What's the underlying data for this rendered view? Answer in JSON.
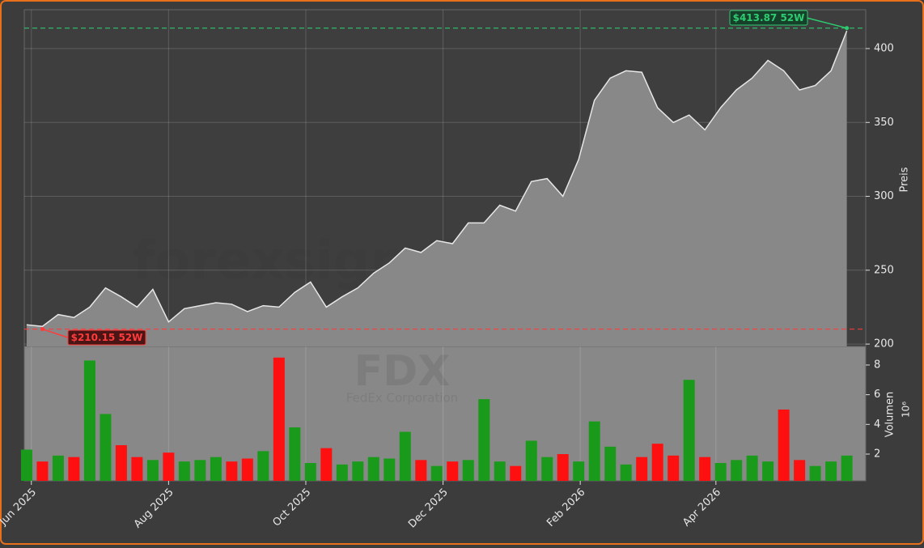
{
  "chart_data": {
    "type": "area",
    "watermark": "forexsignale.trade",
    "symbol": "FDX",
    "company": "FedEx Corporation",
    "ylabel": "Preis",
    "ylim": [
      198.4,
      426.3
    ],
    "yticks": [
      200,
      250,
      300,
      350,
      400
    ],
    "xlim": [
      -0.15,
      53.2
    ],
    "xticks": [
      {
        "value": 0.3,
        "label": "Jun 2025"
      },
      {
        "value": 9,
        "label": "Aug 2025"
      },
      {
        "value": 17.7,
        "label": "Oct 2025"
      },
      {
        "value": 26.4,
        "label": "Dec 2025"
      },
      {
        "value": 35.1,
        "label": "Feb 2026"
      },
      {
        "value": 43.7,
        "label": "Apr 2026"
      }
    ],
    "grid": true,
    "color": "#e6e6e6",
    "fill": "#888888",
    "values": [
      213,
      212,
      220,
      218,
      225,
      238,
      232,
      225,
      237,
      215,
      224,
      226,
      228,
      227,
      222,
      226,
      225,
      235,
      242,
      225,
      232,
      238,
      248,
      255,
      265,
      262,
      270,
      268,
      282,
      282,
      294,
      290,
      310,
      312,
      300,
      325,
      365,
      380,
      385,
      384,
      360,
      350,
      355,
      345,
      360,
      372,
      380,
      392,
      385,
      372,
      375,
      385,
      412
    ],
    "annotations": [
      {
        "label": "$413.87 52W",
        "value": 413.87,
        "color": "#2ecc71"
      },
      {
        "label": "$210.15 52W",
        "value": 210.15,
        "color": "#ff3b3b"
      }
    ],
    "volume": {
      "type": "bar",
      "ylabel": "Volumen",
      "unit_label": "10⁶",
      "ylim": [
        0.2,
        9.25
      ],
      "yticks": [
        2,
        4,
        6,
        8
      ],
      "up_color": "#1a9a1a",
      "down_color": "#ff1010",
      "values": [
        2.3,
        1.5,
        1.9,
        1.8,
        8.3,
        4.7,
        2.6,
        1.8,
        1.6,
        2.1,
        1.5,
        1.6,
        1.8,
        1.5,
        1.7,
        2.2,
        8.5,
        3.8,
        1.4,
        2.4,
        1.3,
        1.5,
        1.8,
        1.7,
        3.5,
        1.6,
        1.2,
        1.5,
        1.6,
        5.7,
        1.5,
        1.2,
        2.9,
        1.8,
        2.0,
        1.5,
        4.2,
        2.5,
        1.3,
        1.8,
        2.7,
        1.9,
        7.0,
        1.8,
        1.4,
        1.6,
        1.9,
        1.5,
        5.0,
        1.6,
        1.2,
        1.5,
        1.9
      ]
    }
  }
}
